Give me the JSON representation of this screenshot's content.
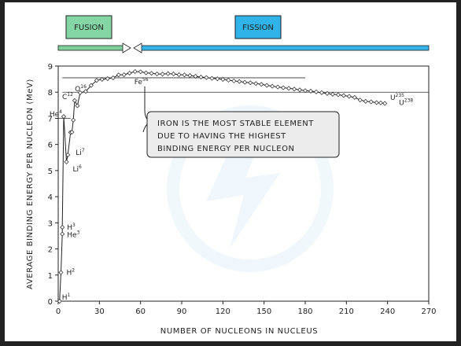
{
  "bands": {
    "fusion": {
      "label": "FUSION",
      "color": "#84d7a4",
      "arrow_color": "#7fd09a"
    },
    "fission": {
      "label": "FISSION",
      "color": "#2fb3e8",
      "arrow_color": "#33b4ea"
    }
  },
  "annotation": {
    "lines": [
      "IRON IS THE MOST STABLE ELEMENT",
      "DUE TO HAVING THE HIGHEST",
      "BINDING ENERGY PER NUCLEON"
    ]
  },
  "chart_data": {
    "type": "line",
    "title": "",
    "xlabel": "NUMBER  OF  NUCLEONS  IN  NUCLEUS",
    "ylabel": "AVERAGE  BINDING  ENERGY  PER  NUCLEON  (MeV)",
    "xlim": [
      0,
      270
    ],
    "ylim": [
      0,
      9
    ],
    "xticks": [
      0,
      30,
      60,
      90,
      120,
      150,
      180,
      210,
      240,
      270
    ],
    "yticks": [
      0,
      1,
      2,
      3,
      4,
      5,
      6,
      7,
      8,
      9
    ],
    "grid": false,
    "series": [
      {
        "x": [
          1,
          2,
          3,
          3,
          4,
          6,
          7,
          9,
          10,
          11,
          12,
          14,
          16,
          20,
          24,
          28,
          32,
          36,
          40,
          44,
          48,
          52,
          56,
          60,
          64,
          68,
          72,
          76,
          80,
          84,
          88,
          92,
          96,
          100,
          104,
          108,
          112,
          116,
          120,
          124,
          128,
          132,
          136,
          140,
          144,
          148,
          152,
          156,
          160,
          164,
          168,
          172,
          176,
          180,
          184,
          188,
          192,
          196,
          200,
          204,
          208,
          212,
          216,
          220,
          224,
          228,
          232,
          235,
          238
        ],
        "y": [
          0,
          1.1,
          2.57,
          2.83,
          7.07,
          5.33,
          5.6,
          6.46,
          6.47,
          6.93,
          7.68,
          7.48,
          7.98,
          8.03,
          8.26,
          8.45,
          8.49,
          8.52,
          8.55,
          8.66,
          8.67,
          8.73,
          8.79,
          8.78,
          8.74,
          8.72,
          8.7,
          8.69,
          8.71,
          8.7,
          8.67,
          8.66,
          8.64,
          8.61,
          8.58,
          8.56,
          8.53,
          8.51,
          8.49,
          8.46,
          8.43,
          8.41,
          8.38,
          8.36,
          8.33,
          8.3,
          8.26,
          8.23,
          8.2,
          8.17,
          8.15,
          8.12,
          8.09,
          8.06,
          8.04,
          8.01,
          7.98,
          7.95,
          7.92,
          7.9,
          7.87,
          7.84,
          7.8,
          7.7,
          7.65,
          7.63,
          7.6,
          7.59,
          7.57
        ]
      }
    ],
    "reference_lines": [
      {
        "y": 8.55,
        "x_from": 3,
        "x_to": 180
      },
      {
        "y": 8.0,
        "x_from": 3,
        "x_to": 270
      },
      {
        "y": 7.0,
        "x_from": 0,
        "x_to": 9
      }
    ],
    "labels": [
      {
        "symbol": "H",
        "mass": "1",
        "x": 1,
        "y": 0
      },
      {
        "symbol": "H",
        "mass": "2",
        "x": 2,
        "y": 1.1
      },
      {
        "symbol": "H",
        "mass": "3",
        "x": 3,
        "y": 2.83
      },
      {
        "symbol": "He",
        "mass": "3",
        "x": 3,
        "y": 2.57
      },
      {
        "symbol": "He",
        "mass": "4",
        "x": 4,
        "y": 7.07
      },
      {
        "symbol": "Li",
        "mass": "6",
        "x": 6,
        "y": 5.33
      },
      {
        "symbol": "Li",
        "mass": "7",
        "x": 7,
        "y": 5.6
      },
      {
        "symbol": "C",
        "mass": "12",
        "x": 12,
        "y": 7.68
      },
      {
        "symbol": "O",
        "mass": "16",
        "x": 16,
        "y": 7.98
      },
      {
        "symbol": "Fe",
        "mass": "56",
        "x": 56,
        "y": 8.79
      },
      {
        "symbol": "U",
        "mass": "235",
        "x": 235,
        "y": 7.59
      },
      {
        "symbol": "U",
        "mass": "238",
        "x": 238,
        "y": 7.57
      }
    ]
  }
}
